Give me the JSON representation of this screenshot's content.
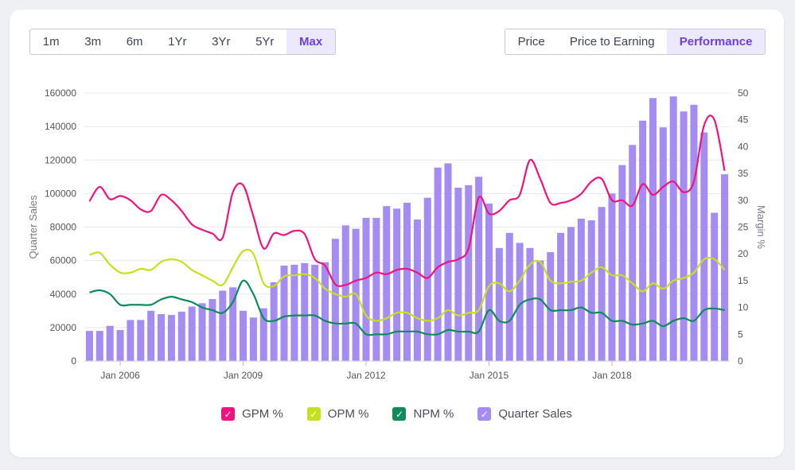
{
  "range_buttons": [
    "1m",
    "3m",
    "6m",
    "1Yr",
    "3Yr",
    "5Yr",
    "Max"
  ],
  "range_active": "Max",
  "mode_buttons": [
    "Price",
    "Price to Earning",
    "Performance"
  ],
  "mode_active": "Performance",
  "colors": {
    "gpm": "#f0137f",
    "opm": "#c6e11b",
    "npm": "#0f8a5b",
    "bar": "#a48cf3",
    "accent": "#6c3fe0",
    "grid": "#e8e8ee",
    "axis_text": "#555555"
  },
  "legend": [
    {
      "key": "gpm",
      "label": "GPM %"
    },
    {
      "key": "opm",
      "label": "OPM %"
    },
    {
      "key": "npm",
      "label": "NPM %"
    },
    {
      "key": "bar",
      "label": "Quarter Sales"
    }
  ],
  "chart_data": {
    "type": "bar+line",
    "left_axis": {
      "label": "Quarter Sales",
      "range": [
        0,
        160000
      ],
      "ticks": [
        "0",
        "20000",
        "40000",
        "60000",
        "80000",
        "100000",
        "120000",
        "140000",
        "160000"
      ]
    },
    "right_axis": {
      "label": "Margin %",
      "range": [
        0,
        50
      ],
      "ticks": [
        "0",
        "5",
        "10",
        "15",
        "20",
        "25",
        "30",
        "35",
        "40",
        "45",
        "50"
      ]
    },
    "x_ticks": [
      {
        "label": "Jan 2006",
        "index": 3
      },
      {
        "label": "Jan 2009",
        "index": 15
      },
      {
        "label": "Jan 2012",
        "index": 27
      },
      {
        "label": "Jan 2015",
        "index": 39
      },
      {
        "label": "Jan 2018",
        "index": 51
      }
    ],
    "quarter_sales": [
      18000,
      18000,
      21000,
      18500,
      24500,
      24500,
      30000,
      28000,
      27500,
      29500,
      32500,
      34500,
      37000,
      42000,
      44000,
      30000,
      26000,
      31500,
      47000,
      57000,
      57500,
      58500,
      57500,
      59000,
      73000,
      81000,
      79000,
      85500,
      85500,
      92500,
      91000,
      94500,
      84500,
      97500,
      115500,
      118000,
      103500,
      105000,
      110000,
      94000,
      67500,
      76500,
      70500,
      67500,
      60000,
      65000,
      76500,
      80000,
      85000,
      84000,
      92000,
      100000,
      117000,
      129000,
      143500,
      157000,
      139500,
      158000,
      149000,
      153000,
      136500,
      88500,
      111500
    ],
    "series": [
      {
        "name": "GPM %",
        "values": [
          29.8,
          32.5,
          30.2,
          30.8,
          30.0,
          28.3,
          28.0,
          31.0,
          30.0,
          28.0,
          25.5,
          24.5,
          23.8,
          23.0,
          31.5,
          32.8,
          27.0,
          21.0,
          23.8,
          23.5,
          24.3,
          23.7,
          19.0,
          17.8,
          14.3,
          14.2,
          15.0,
          15.5,
          16.5,
          16.2,
          17.0,
          17.2,
          16.5,
          15.5,
          17.5,
          18.5,
          19.0,
          21.0,
          30.5,
          27.5,
          28.0,
          30.0,
          31.0,
          37.5,
          34.0,
          29.5,
          29.5,
          30.0,
          31.2,
          33.5,
          34.0,
          30.0,
          30.0,
          29.0,
          33.0,
          31.0,
          32.5,
          33.5,
          31.5,
          33.5,
          44.0,
          45.0,
          35.5
        ]
      },
      {
        "name": "OPM %",
        "values": [
          19.8,
          20.2,
          18.0,
          16.5,
          16.5,
          17.2,
          17.0,
          18.5,
          19.0,
          18.5,
          17.0,
          16.0,
          15.0,
          14.2,
          17.5,
          20.5,
          20.0,
          14.5,
          14.0,
          15.8,
          16.0,
          16.2,
          15.5,
          13.5,
          12.5,
          12.0,
          12.5,
          8.5,
          7.5,
          8.0,
          9.0,
          9.0,
          8.0,
          7.5,
          8.0,
          9.5,
          8.5,
          9.0,
          9.5,
          14.0,
          14.5,
          13.0,
          15.0,
          18.0,
          18.5,
          15.0,
          14.5,
          14.8,
          15.0,
          16.5,
          17.5,
          16.0,
          16.0,
          14.5,
          13.0,
          14.5,
          13.5,
          15.0,
          15.5,
          16.5,
          19.0,
          19.0,
          17.0
        ]
      },
      {
        "name": "NPM %",
        "values": [
          12.8,
          13.2,
          12.5,
          10.5,
          10.5,
          10.5,
          10.5,
          11.5,
          12.0,
          11.5,
          11.0,
          10.0,
          9.5,
          9.0,
          11.0,
          15.0,
          12.5,
          8.0,
          7.5,
          8.3,
          8.5,
          8.5,
          8.5,
          7.5,
          7.0,
          7.0,
          7.0,
          5.0,
          5.0,
          5.0,
          5.5,
          5.5,
          5.5,
          5.0,
          5.0,
          5.8,
          5.5,
          5.5,
          5.5,
          9.5,
          7.5,
          7.5,
          10.5,
          11.5,
          11.5,
          9.5,
          9.5,
          9.5,
          10.0,
          9.0,
          9.0,
          7.5,
          7.5,
          6.8,
          7.0,
          7.5,
          6.5,
          7.5,
          8.0,
          7.5,
          9.5,
          9.8,
          9.5
        ]
      }
    ]
  }
}
